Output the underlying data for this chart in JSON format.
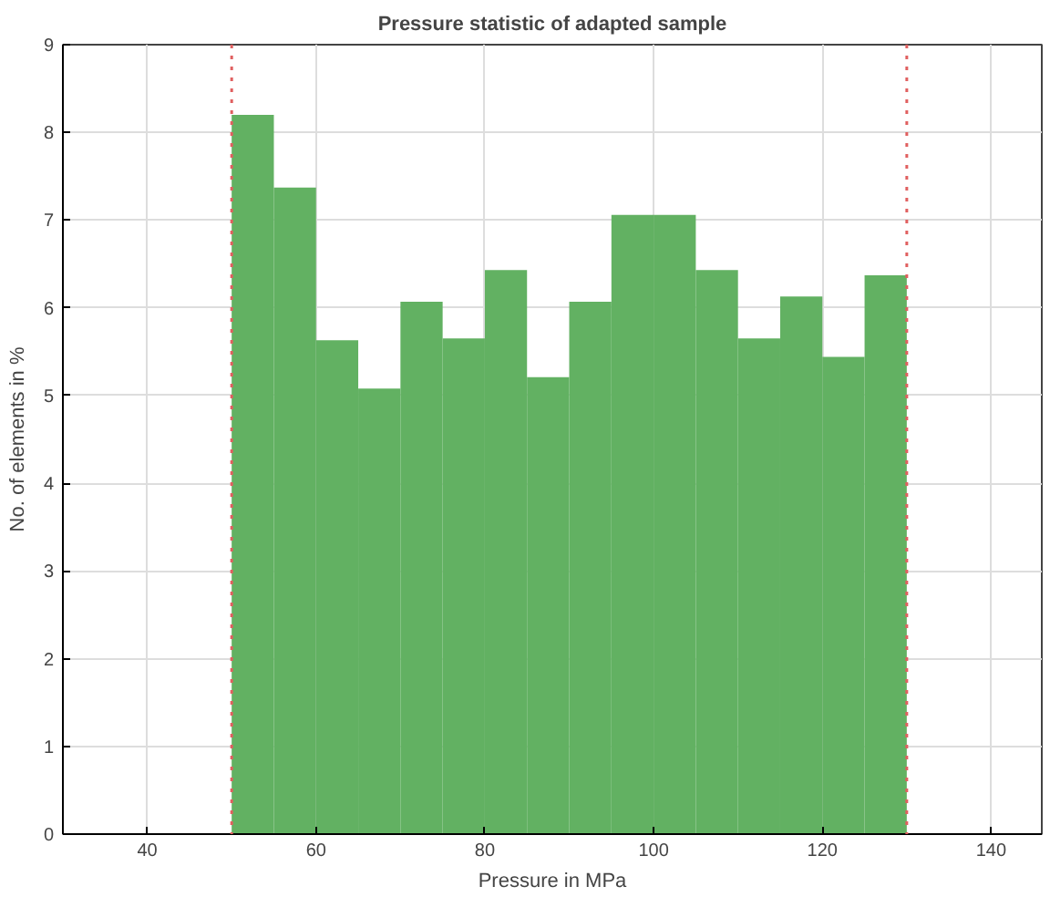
{
  "chart_data": {
    "type": "histogram",
    "title": "Pressure statistic of adapted sample",
    "xlabel": "Pressure in MPa",
    "ylabel": "No. of elements in %",
    "bins": [
      50,
      55,
      60,
      65,
      70,
      75,
      80,
      85,
      90,
      95,
      100,
      105,
      110,
      115,
      120,
      125,
      130
    ],
    "values": [
      8.2,
      7.37,
      5.63,
      5.08,
      6.07,
      5.65,
      6.43,
      5.21,
      6.07,
      7.06,
      7.06,
      6.43,
      5.65,
      6.13,
      5.44,
      6.37
    ],
    "color": "#62b162",
    "xlim": [
      30,
      146
    ],
    "xticks": [
      40,
      60,
      80,
      100,
      120,
      140
    ],
    "ylim": [
      0,
      9
    ],
    "yticks": [
      0,
      1,
      2,
      3,
      4,
      5,
      6,
      7,
      8,
      9
    ],
    "grid": true,
    "ref_lines": [
      {
        "axis": "x",
        "value": 50,
        "color": "#e06060",
        "line_style": "dotted"
      },
      {
        "axis": "x",
        "value": 130,
        "color": "#e06060",
        "line_style": "dotted"
      }
    ]
  }
}
